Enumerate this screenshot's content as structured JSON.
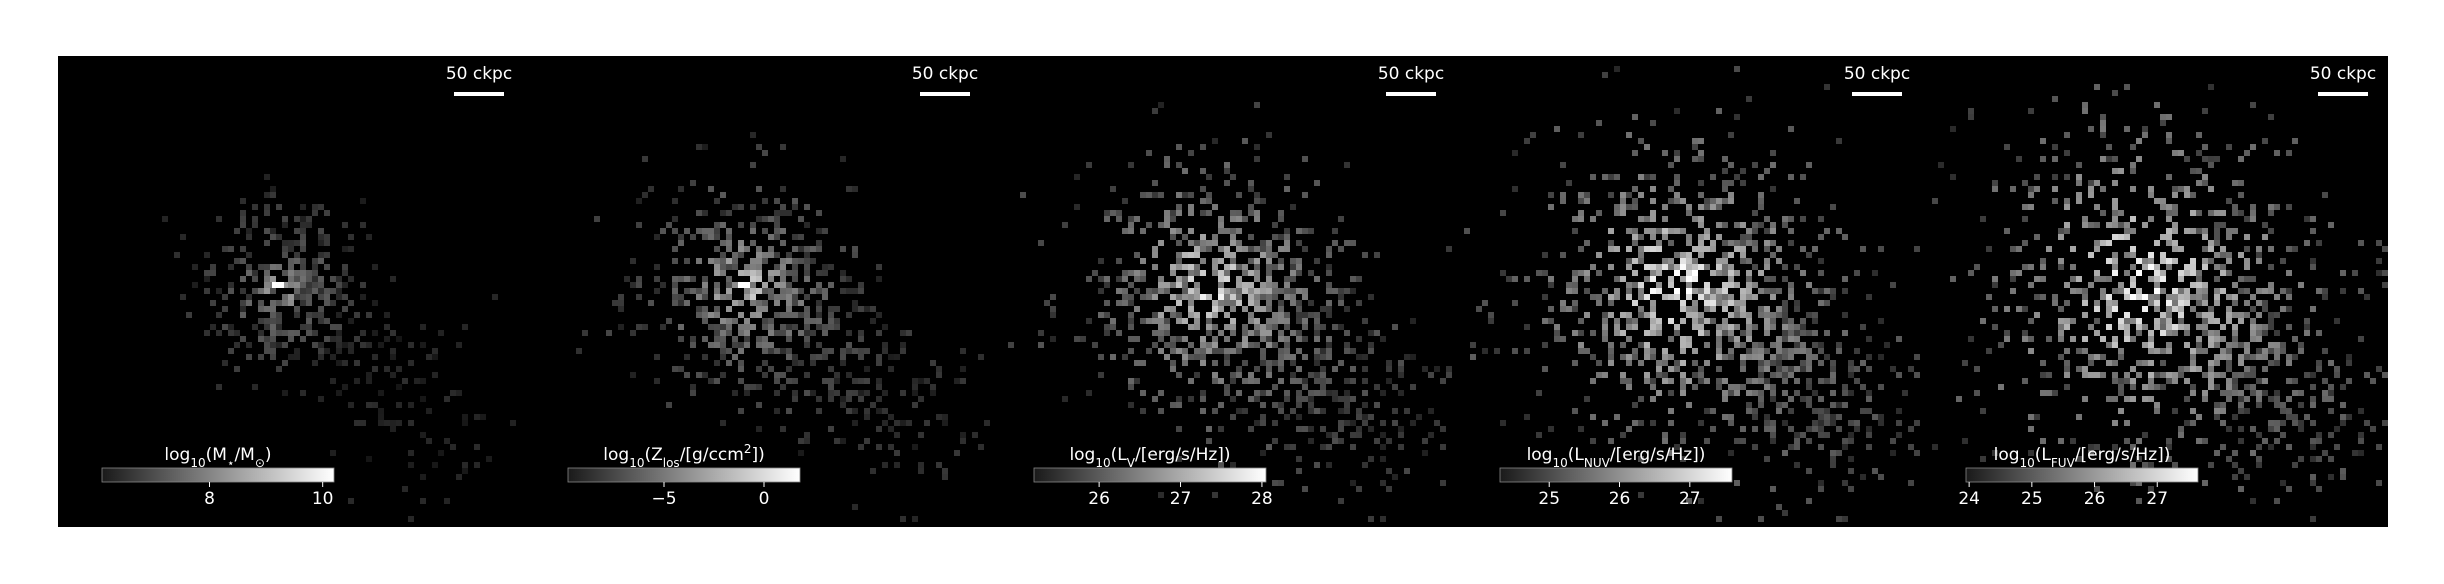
{
  "panels": [
    {
      "scale_bar": "50 ckpc",
      "colorbar": {
        "label": [
          {
            "text": "log"
          },
          {
            "text": "10",
            "style": "sub"
          },
          {
            "text": "(M"
          },
          {
            "text": "⋆",
            "style": "sub"
          },
          {
            "text": "/M"
          },
          {
            "text": "⊙",
            "style": "sub"
          },
          {
            "text": ")"
          }
        ],
        "lim": [
          6.1,
          10.2
        ],
        "ticks": [
          8,
          10
        ]
      }
    },
    {
      "scale_bar": "50 ckpc",
      "colorbar": {
        "label": [
          {
            "text": "log"
          },
          {
            "text": "10",
            "style": "sub"
          },
          {
            "text": "(Z"
          },
          {
            "text": "los",
            "style": "sub"
          },
          {
            "text": "/[g/ccm"
          },
          {
            "text": "2",
            "style": "sup"
          },
          {
            "text": "])"
          }
        ],
        "lim": [
          -9.8,
          1.8
        ],
        "ticks": [
          {
            "value": -5,
            "label": "−5"
          },
          0
        ]
      }
    },
    {
      "scale_bar": "50 ckpc",
      "colorbar": {
        "label": [
          {
            "text": "log"
          },
          {
            "text": "10",
            "style": "sub"
          },
          {
            "text": "(L"
          },
          {
            "text": "V",
            "style": "sub"
          },
          {
            "text": "/[erg/s/Hz])"
          }
        ],
        "lim": [
          25.2,
          28.05
        ],
        "ticks": [
          26,
          27,
          28
        ]
      }
    },
    {
      "scale_bar": "50 ckpc",
      "colorbar": {
        "label": [
          {
            "text": "log"
          },
          {
            "text": "10",
            "style": "sub"
          },
          {
            "text": "(L"
          },
          {
            "text": "NUV",
            "style": "sub"
          },
          {
            "text": "/[erg/s/Hz])"
          }
        ],
        "lim": [
          24.3,
          27.6
        ],
        "ticks": [
          25,
          26,
          27
        ]
      }
    },
    {
      "scale_bar": "50 ckpc",
      "colorbar": {
        "label": [
          {
            "text": "log"
          },
          {
            "text": "10",
            "style": "sub"
          },
          {
            "text": "(L"
          },
          {
            "text": "FUV",
            "style": "sub"
          },
          {
            "text": "/[erg/s/Hz])"
          }
        ],
        "lim": [
          23.95,
          27.65
        ],
        "ticks": [
          24,
          25,
          26,
          27
        ]
      }
    }
  ]
}
